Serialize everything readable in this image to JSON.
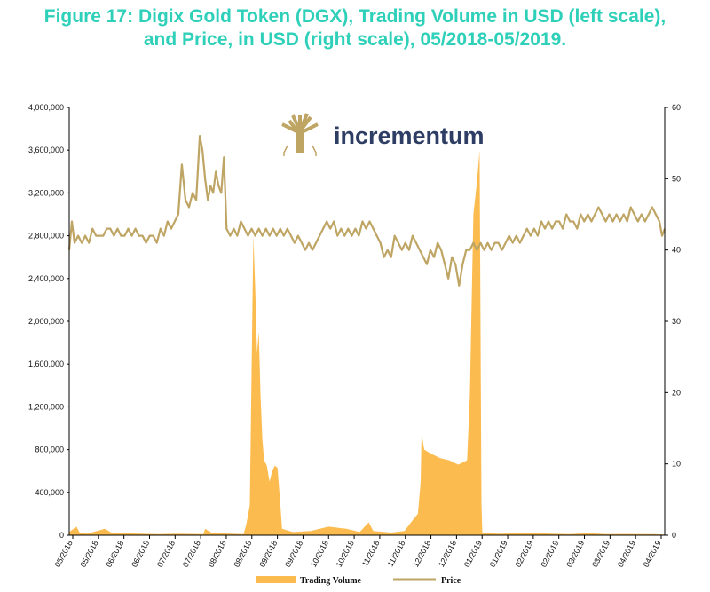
{
  "chart_data": {
    "type": "area+line",
    "title_line1": "Figure 17: Digix Gold Token (DGX), Trading Volume in USD (left scale),",
    "title_line2": "and Price, in USD (right scale), 05/2018-05/2019.",
    "logo_text": "incrementum",
    "colors": {
      "title": "#2fd0b9",
      "volume": "#fbbb4e",
      "price": "#bfa564",
      "logo": "#2e3d63"
    },
    "left_axis": {
      "min": 0,
      "max": 4000000,
      "ticks": [
        0,
        400000,
        800000,
        1200000,
        1600000,
        2000000,
        2400000,
        2800000,
        3200000,
        3600000,
        4000000
      ],
      "tick_labels": [
        "0",
        "400,000",
        "800,000",
        "1,200,000",
        "1,600,000",
        "2,000,000",
        "2,400,000",
        "2,800,000",
        "3,200,000",
        "3,600,000",
        "4,000,000"
      ]
    },
    "right_axis": {
      "min": 0,
      "max": 60,
      "ticks": [
        0,
        10,
        20,
        30,
        40,
        50,
        60
      ],
      "tick_labels": [
        "0",
        "10",
        "20",
        "30",
        "40",
        "50",
        "60"
      ]
    },
    "x_tick_labels": [
      "05/2018",
      "05/2018",
      "06/2018",
      "06/2018",
      "07/2018",
      "07/2018",
      "08/2018",
      "08/2018",
      "09/2018",
      "09/2018",
      "10/2018",
      "10/2018",
      "11/2018",
      "11/2018",
      "12/2018",
      "12/2018",
      "01/2019",
      "01/2019",
      "02/2019",
      "02/2019",
      "03/2019",
      "03/2019",
      "04/2019",
      "04/2019"
    ],
    "series": [
      {
        "name": "Trading Volume",
        "axis": "left",
        "points": [
          [
            0,
            30000
          ],
          [
            8,
            80000
          ],
          [
            12,
            20000
          ],
          [
            20,
            15000
          ],
          [
            40,
            60000
          ],
          [
            48,
            20000
          ],
          [
            80,
            15000
          ],
          [
            100,
            10000
          ],
          [
            120,
            15000
          ],
          [
            150,
            10000
          ],
          [
            152,
            60000
          ],
          [
            160,
            20000
          ],
          [
            180,
            15000
          ],
          [
            195,
            10000
          ],
          [
            198,
            100000
          ],
          [
            202,
            280000
          ],
          [
            206,
            2800000
          ],
          [
            208,
            2300000
          ],
          [
            210,
            1700000
          ],
          [
            212,
            1900000
          ],
          [
            214,
            1300000
          ],
          [
            216,
            900000
          ],
          [
            218,
            700000
          ],
          [
            221,
            650000
          ],
          [
            224,
            500000
          ],
          [
            227,
            600000
          ],
          [
            230,
            650000
          ],
          [
            233,
            630000
          ],
          [
            236,
            300000
          ],
          [
            238,
            60000
          ],
          [
            250,
            30000
          ],
          [
            270,
            40000
          ],
          [
            290,
            80000
          ],
          [
            310,
            60000
          ],
          [
            325,
            30000
          ],
          [
            335,
            120000
          ],
          [
            340,
            40000
          ],
          [
            360,
            25000
          ],
          [
            375,
            40000
          ],
          [
            385,
            150000
          ],
          [
            390,
            200000
          ],
          [
            393,
            500000
          ],
          [
            394,
            950000
          ],
          [
            397,
            800000
          ],
          [
            405,
            760000
          ],
          [
            415,
            720000
          ],
          [
            425,
            700000
          ],
          [
            435,
            660000
          ],
          [
            445,
            700000
          ],
          [
            448,
            1300000
          ],
          [
            452,
            3000000
          ],
          [
            456,
            3300000
          ],
          [
            459,
            3600000
          ],
          [
            461,
            300000
          ],
          [
            462,
            20000
          ],
          [
            480,
            15000
          ],
          [
            520,
            20000
          ],
          [
            540,
            15000
          ],
          [
            560,
            10000
          ],
          [
            580,
            20000
          ],
          [
            600,
            10000
          ],
          [
            620,
            12000
          ],
          [
            655,
            10000
          ],
          [
            666,
            5000
          ]
        ]
      },
      {
        "name": "Price",
        "axis": "right",
        "points": [
          [
            0,
            40
          ],
          [
            3,
            44
          ],
          [
            6,
            41
          ],
          [
            10,
            42
          ],
          [
            14,
            41
          ],
          [
            18,
            42
          ],
          [
            22,
            41
          ],
          [
            26,
            43
          ],
          [
            30,
            42
          ],
          [
            34,
            42
          ],
          [
            38,
            42
          ],
          [
            42,
            43
          ],
          [
            46,
            43
          ],
          [
            50,
            42
          ],
          [
            54,
            43
          ],
          [
            58,
            42
          ],
          [
            62,
            42
          ],
          [
            66,
            43
          ],
          [
            70,
            42
          ],
          [
            74,
            43
          ],
          [
            78,
            42
          ],
          [
            82,
            42
          ],
          [
            86,
            41
          ],
          [
            90,
            42
          ],
          [
            94,
            42
          ],
          [
            98,
            41
          ],
          [
            102,
            43
          ],
          [
            106,
            42
          ],
          [
            110,
            44
          ],
          [
            114,
            43
          ],
          [
            118,
            44
          ],
          [
            122,
            45
          ],
          [
            126,
            52
          ],
          [
            130,
            47
          ],
          [
            134,
            46
          ],
          [
            138,
            48
          ],
          [
            142,
            47
          ],
          [
            146,
            56
          ],
          [
            149,
            54
          ],
          [
            152,
            50
          ],
          [
            155,
            47
          ],
          [
            158,
            49
          ],
          [
            161,
            48
          ],
          [
            164,
            51
          ],
          [
            167,
            49
          ],
          [
            170,
            48
          ],
          [
            173,
            53
          ],
          [
            176,
            43
          ],
          [
            180,
            42
          ],
          [
            184,
            43
          ],
          [
            188,
            42
          ],
          [
            192,
            44
          ],
          [
            196,
            43
          ],
          [
            200,
            42
          ],
          [
            204,
            43
          ],
          [
            208,
            42
          ],
          [
            212,
            43
          ],
          [
            216,
            42
          ],
          [
            220,
            43
          ],
          [
            224,
            42
          ],
          [
            228,
            43
          ],
          [
            232,
            42
          ],
          [
            236,
            43
          ],
          [
            240,
            42
          ],
          [
            244,
            43
          ],
          [
            248,
            42
          ],
          [
            252,
            41
          ],
          [
            256,
            42
          ],
          [
            260,
            41
          ],
          [
            264,
            40
          ],
          [
            268,
            41
          ],
          [
            272,
            40
          ],
          [
            276,
            41
          ],
          [
            280,
            42
          ],
          [
            284,
            43
          ],
          [
            288,
            44
          ],
          [
            292,
            43
          ],
          [
            296,
            44
          ],
          [
            300,
            42
          ],
          [
            304,
            43
          ],
          [
            308,
            42
          ],
          [
            312,
            43
          ],
          [
            316,
            42
          ],
          [
            320,
            43
          ],
          [
            324,
            42
          ],
          [
            328,
            44
          ],
          [
            332,
            43
          ],
          [
            336,
            44
          ],
          [
            340,
            43
          ],
          [
            344,
            42
          ],
          [
            348,
            41
          ],
          [
            352,
            39
          ],
          [
            356,
            40
          ],
          [
            360,
            39
          ],
          [
            364,
            42
          ],
          [
            368,
            41
          ],
          [
            372,
            40
          ],
          [
            376,
            41
          ],
          [
            380,
            40
          ],
          [
            384,
            42
          ],
          [
            388,
            41
          ],
          [
            392,
            40
          ],
          [
            396,
            39
          ],
          [
            400,
            38
          ],
          [
            404,
            40
          ],
          [
            408,
            39
          ],
          [
            412,
            41
          ],
          [
            416,
            40
          ],
          [
            420,
            38
          ],
          [
            424,
            36
          ],
          [
            428,
            39
          ],
          [
            432,
            38
          ],
          [
            436,
            35
          ],
          [
            440,
            38
          ],
          [
            444,
            40
          ],
          [
            448,
            40
          ],
          [
            452,
            41
          ],
          [
            456,
            40
          ],
          [
            460,
            41
          ],
          [
            464,
            40
          ],
          [
            468,
            41
          ],
          [
            472,
            40
          ],
          [
            476,
            41
          ],
          [
            480,
            41
          ],
          [
            484,
            40
          ],
          [
            488,
            41
          ],
          [
            492,
            42
          ],
          [
            496,
            41
          ],
          [
            500,
            42
          ],
          [
            504,
            41
          ],
          [
            508,
            42
          ],
          [
            512,
            43
          ],
          [
            516,
            42
          ],
          [
            520,
            43
          ],
          [
            524,
            42
          ],
          [
            528,
            44
          ],
          [
            532,
            43
          ],
          [
            536,
            44
          ],
          [
            540,
            43
          ],
          [
            544,
            44
          ],
          [
            548,
            44
          ],
          [
            552,
            43
          ],
          [
            556,
            45
          ],
          [
            560,
            44
          ],
          [
            564,
            44
          ],
          [
            568,
            43
          ],
          [
            572,
            45
          ],
          [
            576,
            44
          ],
          [
            580,
            45
          ],
          [
            584,
            44
          ],
          [
            588,
            45
          ],
          [
            592,
            46
          ],
          [
            596,
            45
          ],
          [
            600,
            44
          ],
          [
            604,
            45
          ],
          [
            608,
            44
          ],
          [
            612,
            45
          ],
          [
            616,
            44
          ],
          [
            620,
            45
          ],
          [
            624,
            44
          ],
          [
            628,
            46
          ],
          [
            632,
            45
          ],
          [
            636,
            44
          ],
          [
            640,
            45
          ],
          [
            644,
            44
          ],
          [
            648,
            45
          ],
          [
            652,
            46
          ],
          [
            656,
            45
          ],
          [
            660,
            44
          ],
          [
            663,
            42
          ],
          [
            666,
            43
          ]
        ]
      }
    ]
  }
}
